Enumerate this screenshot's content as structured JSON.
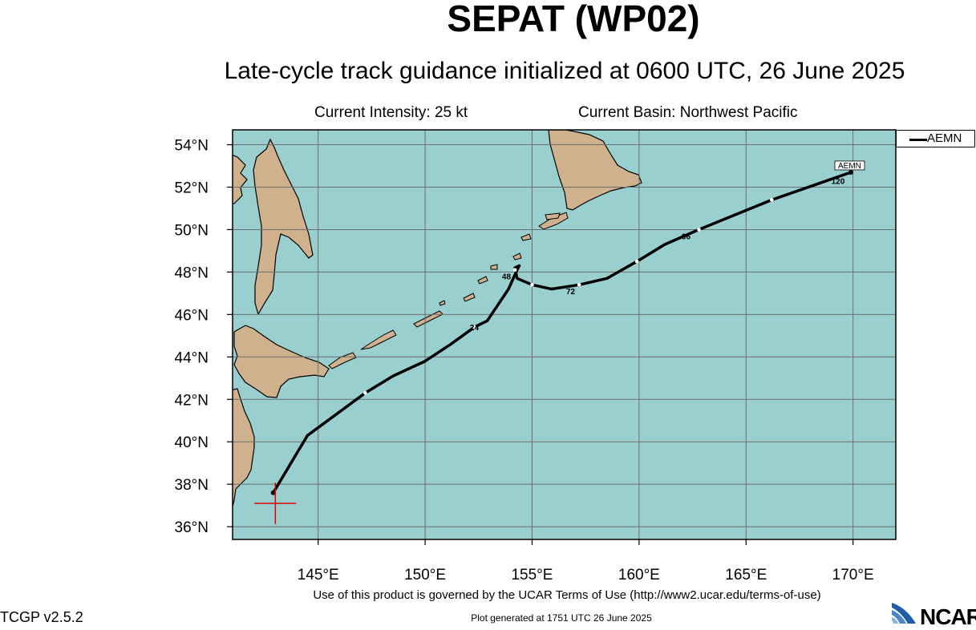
{
  "title": "SEPAT (WP02)",
  "subtitle": "Late-cycle track guidance initialized at 0600 UTC, 26 June 2025",
  "current_intensity": "Current Intensity: 25 kt",
  "current_basin": "Current Basin: Northwest Pacific",
  "colors": {
    "ocean": "#99cfcf",
    "land": "#cfb28d",
    "grid": "#6e6e6e",
    "track": "#000000",
    "current_position_marker": "#e00000"
  },
  "map": {
    "lon_range": [
      141,
      172
    ],
    "lat_range": [
      35.4,
      54.7
    ],
    "lon_ticks": [
      {
        "value": 145,
        "label": "145°E"
      },
      {
        "value": 150,
        "label": "150°E"
      },
      {
        "value": 155,
        "label": "155°E"
      },
      {
        "value": 160,
        "label": "160°E"
      },
      {
        "value": 165,
        "label": "165°E"
      },
      {
        "value": 170,
        "label": "170°E"
      }
    ],
    "lat_ticks": [
      {
        "value": 36,
        "label": "36°N"
      },
      {
        "value": 38,
        "label": "38°N"
      },
      {
        "value": 40,
        "label": "40°N"
      },
      {
        "value": 42,
        "label": "42°N"
      },
      {
        "value": 44,
        "label": "44°N"
      },
      {
        "value": 46,
        "label": "46°N"
      },
      {
        "value": 48,
        "label": "48°N"
      },
      {
        "value": 50,
        "label": "50°N"
      },
      {
        "value": 52,
        "label": "52°N"
      },
      {
        "value": 54,
        "label": "54°N"
      }
    ],
    "current_position": {
      "lon": 143.0,
      "lat": 37.1
    }
  },
  "tracks": [
    {
      "name": "AEMN",
      "points": [
        {
          "lon": 142.9,
          "lat": 37.6
        },
        {
          "lon": 144.5,
          "lat": 40.3
        },
        {
          "lon": 147.2,
          "lat": 42.3
        },
        {
          "lon": 148.5,
          "lat": 43.1
        },
        {
          "lon": 150.0,
          "lat": 43.8
        },
        {
          "lon": 151.2,
          "lat": 44.6
        },
        {
          "lon": 152.3,
          "lat": 45.4
        },
        {
          "lon": 152.9,
          "lat": 45.7
        },
        {
          "lon": 153.9,
          "lat": 47.2
        },
        {
          "lon": 154.3,
          "lat": 48.1
        },
        {
          "lon": 154.4,
          "lat": 48.3
        },
        {
          "lon": 154.2,
          "lat": 48.2
        },
        {
          "lon": 154.3,
          "lat": 47.7
        },
        {
          "lon": 155.0,
          "lat": 47.4
        },
        {
          "lon": 155.9,
          "lat": 47.2
        },
        {
          "lon": 157.2,
          "lat": 47.4
        },
        {
          "lon": 158.5,
          "lat": 47.7
        },
        {
          "lon": 159.9,
          "lat": 48.5
        },
        {
          "lon": 161.2,
          "lat": 49.3
        },
        {
          "lon": 162.8,
          "lat": 50.0
        },
        {
          "lon": 164.5,
          "lat": 50.7
        },
        {
          "lon": 166.2,
          "lat": 51.4
        },
        {
          "lon": 168.2,
          "lat": 52.1
        },
        {
          "lon": 169.9,
          "lat": 52.7
        }
      ],
      "tau_markers": [
        {
          "lon": 147.2,
          "lat": 42.3
        },
        {
          "lon": 152.3,
          "lat": 45.4
        },
        {
          "lon": 154.2,
          "lat": 48.1
        },
        {
          "lon": 155.0,
          "lat": 47.4
        },
        {
          "lon": 157.2,
          "lat": 47.4
        },
        {
          "lon": 159.9,
          "lat": 48.5
        },
        {
          "lon": 162.8,
          "lat": 50.0
        },
        {
          "lon": 166.2,
          "lat": 51.4
        }
      ],
      "forecast_hour_labels": [
        {
          "text": "24",
          "lon": 152.3,
          "lat": 45.4
        },
        {
          "text": "48",
          "lon": 153.8,
          "lat": 47.8
        },
        {
          "text": "72",
          "lon": 156.8,
          "lat": 47.1
        },
        {
          "text": "96",
          "lon": 162.2,
          "lat": 49.7
        },
        {
          "text": "120",
          "lon": 169.3,
          "lat": 52.3
        }
      ],
      "end_label": "AEMN"
    }
  ],
  "legend": {
    "entries": [
      {
        "label": "AEMN"
      }
    ]
  },
  "terms": "Use of this product is governed by the UCAR Terms of Use (http://www2.ucar.edu/terms-of-use)",
  "generated": "Plot generated at 1751 UTC   26 June 2025",
  "version": "TCGP v2.5.2",
  "logo_text": "NCAR"
}
